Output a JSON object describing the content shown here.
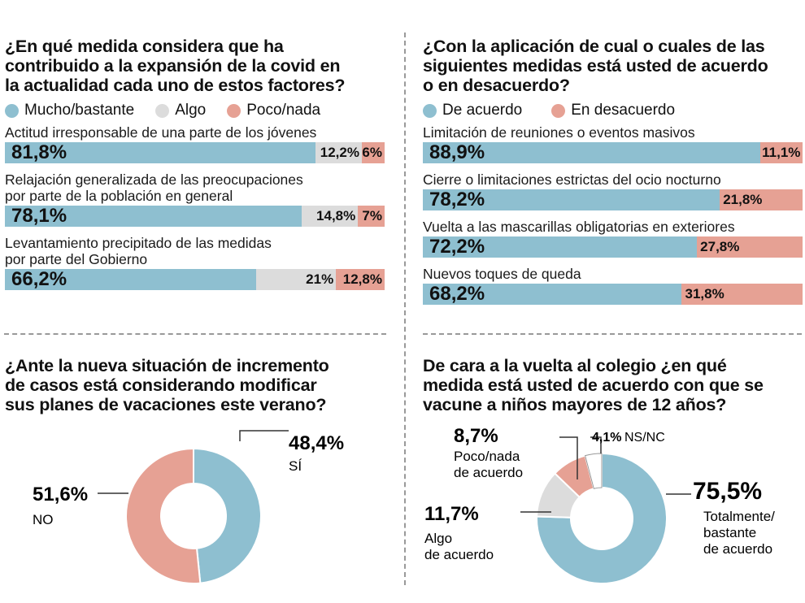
{
  "colors": {
    "blue": "#8ebfd0",
    "grey": "#dcdcdc",
    "salmon": "#e6a194",
    "line": "#333333"
  },
  "chart_data": [
    {
      "type": "bar",
      "title": "¿En qué medida considera que ha contribuido a la expansión de la covid en la actualidad cada uno de estos factores?",
      "legend": [
        "Mucho/bastante",
        "Algo",
        "Poco/nada"
      ],
      "categories": [
        "Actitud irresponsable de una parte de los jóvenes",
        "Relajación generalizada de las preocupaciones por parte de la población en general",
        "Levantamiento precipitado de las medidas por parte del Gobierno"
      ],
      "series": [
        {
          "name": "Mucho/bastante",
          "values": [
            81.8,
            78.1,
            66.2
          ],
          "labels": [
            "81,8%",
            "78,1%",
            "66,2%"
          ]
        },
        {
          "name": "Algo",
          "values": [
            12.2,
            14.8,
            21
          ],
          "labels": [
            "12,2%",
            "14,8%",
            "21%"
          ]
        },
        {
          "name": "Poco/nada",
          "values": [
            6,
            7,
            12.8
          ],
          "labels": [
            "6%",
            "7%",
            "12,8%"
          ]
        }
      ]
    },
    {
      "type": "bar",
      "title": "¿Con la aplicación de cual o cuales de las siguientes medidas está usted de acuerdo o en desacuerdo?",
      "legend": [
        "De acuerdo",
        "En desacuerdo"
      ],
      "categories": [
        "Limitación de reuniones o eventos masivos",
        "Cierre o limitaciones estrictas del ocio nocturno",
        "Vuelta a las mascarillas obligatorias en exteriores",
        "Nuevos toques de queda"
      ],
      "series": [
        {
          "name": "De acuerdo",
          "values": [
            88.9,
            78.2,
            72.2,
            68.2
          ],
          "labels": [
            "88,9%",
            "78,2%",
            "72,2%",
            "68,2%"
          ]
        },
        {
          "name": "En desacuerdo",
          "values": [
            11.1,
            21.8,
            27.8,
            31.8
          ],
          "labels": [
            "11,1%",
            "21,8%",
            "27,8%",
            "31,8%"
          ]
        }
      ]
    },
    {
      "type": "pie",
      "title": "¿Ante la nueva situación de incremento de casos está considerando modificar sus planes de vacaciones este verano?",
      "slices": [
        {
          "name": "SÍ",
          "value": 48.4,
          "label": "48,4%"
        },
        {
          "name": "NO",
          "value": 51.6,
          "label": "51,6%"
        }
      ]
    },
    {
      "type": "pie",
      "title": "De cara a la vuelta al colegio ¿en qué medida está usted de acuerdo con que se vacune a niños mayores de 12 años?",
      "slices": [
        {
          "name": "Totalmente/ bastante de acuerdo",
          "value": 75.5,
          "label": "75,5%"
        },
        {
          "name": "Algo de acuerdo",
          "value": 11.7,
          "label": "11,7%"
        },
        {
          "name": "Poco/nada de acuerdo",
          "value": 8.7,
          "label": "8,7%"
        },
        {
          "name": "NS/NC",
          "value": 4.1,
          "label": "4,1%"
        }
      ]
    }
  ],
  "pie1_labels": {
    "si_value": "48,4%",
    "si_name": "SÍ",
    "no_value": "51,6%",
    "no_name": "NO"
  },
  "pie2_labels": {
    "total_value": "75,5%",
    "total_name_1": "Totalmente/",
    "total_name_2": "bastante",
    "total_name_3": "de acuerdo",
    "algo_value": "11,7%",
    "algo_name_1": "Algo",
    "algo_name_2": "de acuerdo",
    "poco_value": "8,7%",
    "poco_name_1": "Poco/nada",
    "poco_name_2": "de acuerdo",
    "ns_value": "4,1%",
    "ns_name": "NS/NC"
  },
  "titles": {
    "q1": [
      "¿En qué medida considera que ha",
      "contribuido a la expansión de la covid en",
      "la actualidad cada uno de estos factores?"
    ],
    "q2": [
      "¿Con la aplicación de cual o cuales de las",
      "siguientes medidas está usted de acuerdo",
      "o en desacuerdo?"
    ],
    "q3": [
      "¿Ante la nueva situación de incremento",
      "de casos está considerando modificar",
      "sus planes de vacaciones este verano?"
    ],
    "q4": [
      "De cara a la vuelta al colegio ¿en qué",
      "medida está usted de acuerdo con que se",
      "vacune a niños mayores de 12 años?"
    ]
  },
  "q1_rows": [
    [
      "Actitud irresponsable de una parte de los jóvenes"
    ],
    [
      "Relajación generalizada de las preocupaciones",
      "por parte de la población en general"
    ],
    [
      "Levantamiento precipitado de las medidas",
      "por parte del Gobierno"
    ]
  ]
}
